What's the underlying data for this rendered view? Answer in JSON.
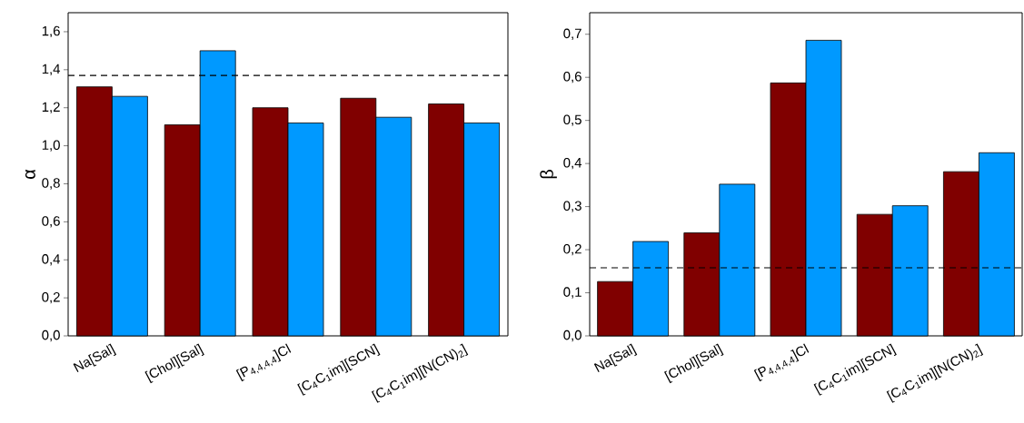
{
  "chart_data": [
    {
      "type": "bar",
      "ylabel": "α",
      "categories": [
        "Na[Sal]",
        "[Chol][Sal]",
        "[P$_{4,4,4,4}$]Cl",
        "[C$_{4}$C$_{1}$im][SCN]",
        "[C$_{4}$C$_{1}$im][N(CN)$_{2}$]"
      ],
      "series": [
        {
          "color": "#800000",
          "values": [
            1.31,
            1.11,
            1.2,
            1.25,
            1.22
          ]
        },
        {
          "color": "#0099ff",
          "values": [
            1.26,
            1.5,
            1.12,
            1.15,
            1.12
          ]
        }
      ],
      "ylim": [
        0,
        1.7
      ],
      "yticks": [
        {
          "value": 0,
          "label": "0,0"
        },
        {
          "value": 0.2,
          "label": "0,2"
        },
        {
          "value": 0.4,
          "label": "0,4"
        },
        {
          "value": 0.6,
          "label": "0,6"
        },
        {
          "value": 0.8,
          "label": "0,8"
        },
        {
          "value": 1.0,
          "label": "1,0"
        },
        {
          "value": 1.2,
          "label": "1,2"
        },
        {
          "value": 1.4,
          "label": "1,4"
        },
        {
          "value": 1.6,
          "label": "1,6"
        }
      ],
      "ref_lines": [
        {
          "axis": "y",
          "value": 1.37,
          "line_style": "dashed",
          "color": "#000000"
        }
      ]
    },
    {
      "type": "bar",
      "ylabel": "β",
      "categories": [
        "Na[Sal]",
        "[Chol][Sal]",
        "[P$_{4,4,4,4}$]Cl",
        "[C$_{4}$C$_{1}$im][SCN]",
        "[C$_{4}$C$_{1}$im][N(CN)$_{2}$]"
      ],
      "series": [
        {
          "color": "#800000",
          "values": [
            0.126,
            0.239,
            0.587,
            0.282,
            0.381
          ]
        },
        {
          "color": "#0099ff",
          "values": [
            0.219,
            0.352,
            0.686,
            0.302,
            0.425
          ]
        }
      ],
      "ylim": [
        0,
        0.75
      ],
      "yticks": [
        {
          "value": 0,
          "label": "0,0"
        },
        {
          "value": 0.1,
          "label": "0,1"
        },
        {
          "value": 0.2,
          "label": "0,2"
        },
        {
          "value": 0.3,
          "label": "0,3"
        },
        {
          "value": 0.4,
          "label": "0,4"
        },
        {
          "value": 0.5,
          "label": "0,5"
        },
        {
          "value": 0.6,
          "label": "0,6"
        },
        {
          "value": 0.7,
          "label": "0,7"
        }
      ],
      "ref_lines": [
        {
          "axis": "y",
          "value": 0.158,
          "line_style": "dashed",
          "color": "#000000"
        }
      ]
    }
  ]
}
